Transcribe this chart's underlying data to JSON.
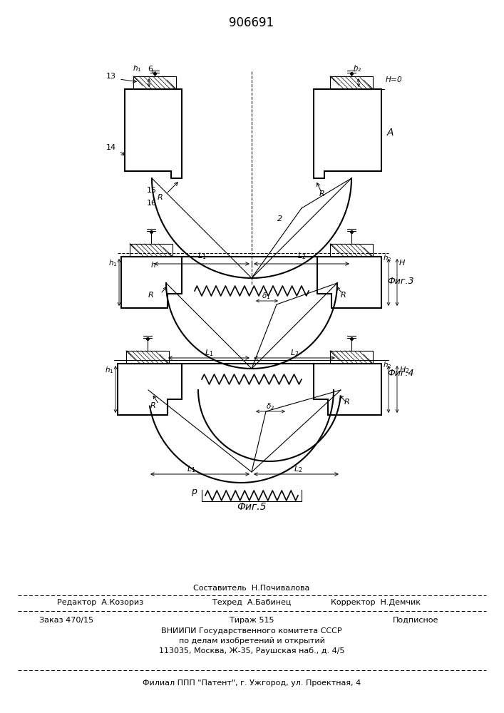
{
  "title": "906691",
  "bg_color": "#ffffff",
  "line_color": "#000000",
  "fig3_label": "Фиг.3",
  "fig4_label": "Фиг.4",
  "fig5_label": "Фиг.5",
  "footer_sestavitel": "Составитель  Н.Почивалова",
  "footer_redaktor": "Редактор  А.Козориз",
  "footer_tehred": "Техред  А.Бабинец",
  "footer_korrektor": "Корректор  Н.Демчик",
  "footer_zakaz": "Заказ 470/15",
  "footer_tirazh": "Тираж 515",
  "footer_podpisnoe": "Подписное",
  "footer_vniip1": "ВНИИПИ Государственного комитета СССР",
  "footer_vniip2": "по делам изобретений и открытий",
  "footer_vniip3": "113035, Москва, Ж-35, Раушская наб., д. 4/5",
  "footer_filial": "Филиал ППП \"Патент\", г. Ужгород, ул. Проектная, 4"
}
